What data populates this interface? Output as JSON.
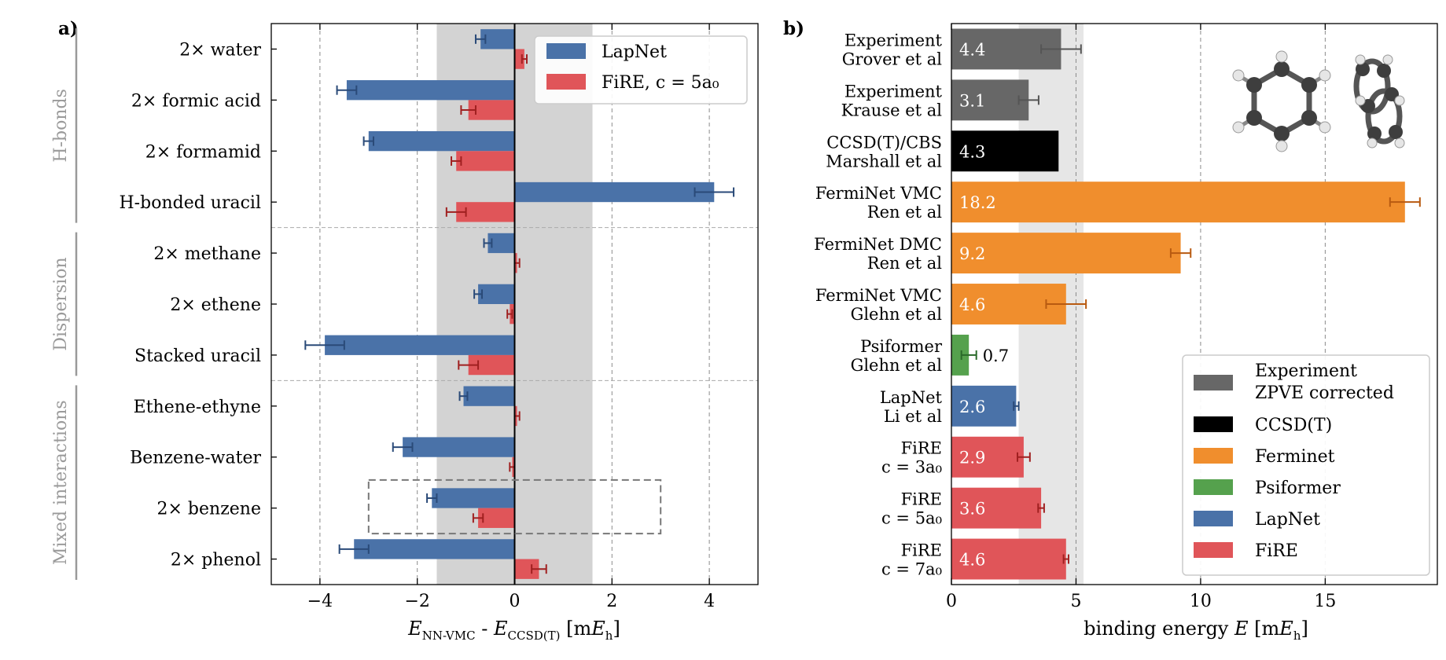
{
  "chart_data": [
    {
      "panel_label": "a)",
      "type": "bar",
      "orientation": "horizontal",
      "grouped": true,
      "categories": [
        "2× water",
        "2× formic acid",
        "2× formamid",
        "H-bonded uracil",
        "2× methane",
        "2× ethene",
        "Stacked uracil",
        "Ethene-ethyne",
        "Benzene-water",
        "2× benzene",
        "2× phenol"
      ],
      "groups": [
        {
          "label": "H-bonds",
          "from": 0,
          "to": 3
        },
        {
          "label": "Dispersion",
          "from": 4,
          "to": 6
        },
        {
          "label": "Mixed interactions",
          "from": 7,
          "to": 10
        }
      ],
      "series": [
        {
          "name": "LapNet",
          "color": "#4a72a8",
          "values": [
            -0.7,
            -3.45,
            -3.0,
            4.1,
            -0.55,
            -0.75,
            -3.9,
            -1.05,
            -2.3,
            -1.7,
            -3.3
          ],
          "errors": [
            0.1,
            0.2,
            0.1,
            0.4,
            0.08,
            0.08,
            0.4,
            0.08,
            0.2,
            0.1,
            0.3
          ]
        },
        {
          "name": "FiRE, c = 5a₀",
          "color": "#e05559",
          "values": [
            0.2,
            -0.95,
            -1.2,
            -1.2,
            0.05,
            -0.1,
            -0.95,
            0.05,
            -0.05,
            -0.75,
            0.5
          ],
          "errors": [
            0.05,
            0.15,
            0.1,
            0.2,
            0.05,
            0.05,
            0.2,
            0.05,
            0.05,
            0.1,
            0.15
          ]
        }
      ],
      "xlim": [
        -5,
        5
      ],
      "xticks": [
        -4,
        -2,
        0,
        2,
        4
      ],
      "xlabel": "E_NN-VMC - E_CCSD(T) [mE_h]",
      "shaded_band": [
        -1.6,
        1.6
      ],
      "highlight_box": {
        "x": [
          -3,
          3
        ],
        "category": "2× benzene"
      },
      "grid": "vertical dashed",
      "legend": "top-right"
    },
    {
      "panel_label": "b)",
      "type": "bar",
      "orientation": "horizontal",
      "categories": [
        "Experiment\nGrover et al",
        "Experiment\nKrause et al",
        "CCSD(T)/CBS\nMarshall et al",
        "FermiNet VMC\nRen et al",
        "FermiNet DMC\nRen et al",
        "FermiNet VMC\nGlehn et al",
        "Psiformer\nGlehn et al",
        "LapNet\nLi et al",
        "FiRE\nc = 3a₀",
        "FiRE\nc = 5a₀",
        "FiRE\nc = 7a₀"
      ],
      "values": [
        4.4,
        3.1,
        4.3,
        18.2,
        9.2,
        4.6,
        0.7,
        2.6,
        2.9,
        3.6,
        4.6
      ],
      "value_labels": [
        "4.4",
        "3.1",
        "4.3",
        "18.2",
        "9.2",
        "4.6",
        "0.7",
        "2.6",
        "2.9",
        "3.6",
        "4.6"
      ],
      "errors": [
        0.8,
        0.4,
        0,
        0.6,
        0.4,
        0.8,
        0.3,
        0.1,
        0.25,
        0.12,
        0.1
      ],
      "bar_series": [
        "experiment",
        "experiment",
        "ccsdt",
        "ferminet",
        "ferminet",
        "ferminet",
        "psiformer",
        "lapnet",
        "fire",
        "fire",
        "fire"
      ],
      "series": [
        {
          "key": "experiment",
          "name": "Experiment\nZPVE corrected",
          "color": "#676767",
          "error_color": "#555555"
        },
        {
          "key": "ccsdt",
          "name": "CCSD(T)",
          "color": "#000000",
          "error_color": "#000000"
        },
        {
          "key": "ferminet",
          "name": "Ferminet",
          "color": "#f08e2d",
          "error_color": "#b85a10"
        },
        {
          "key": "psiformer",
          "name": "Psiformer",
          "color": "#55a14d",
          "error_color": "#2a6a2a"
        },
        {
          "key": "lapnet",
          "name": "LapNet",
          "color": "#4a72a8",
          "error_color": "#2a4a78"
        },
        {
          "key": "fire",
          "name": "FiRE",
          "color": "#e05559",
          "error_color": "#a02020"
        }
      ],
      "xlim": [
        0,
        19.5
      ],
      "xticks": [
        0,
        5,
        10,
        15
      ],
      "xlabel": "binding energy E [mE_h]",
      "shaded_band": [
        2.7,
        5.3
      ],
      "grid": "vertical dashed",
      "legend": "bottom-right"
    }
  ]
}
